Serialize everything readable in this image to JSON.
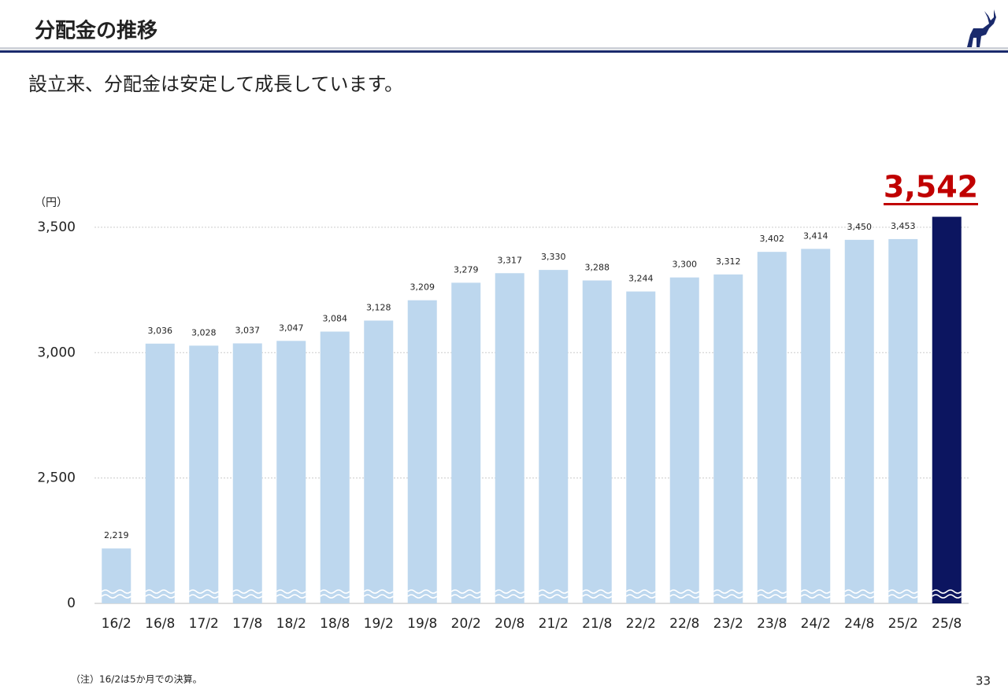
{
  "header": {
    "title": "分配金の推移",
    "page_number": "33"
  },
  "subtitle": "設立来、分配金は安定して成長しています。",
  "footnote": "（注）16/2は5か月での決算。",
  "chart_data": {
    "type": "bar",
    "y_unit": "（円）",
    "categories": [
      "16/2",
      "16/8",
      "17/2",
      "17/8",
      "18/2",
      "18/8",
      "19/2",
      "19/8",
      "20/2",
      "20/8",
      "21/2",
      "21/8",
      "22/2",
      "22/8",
      "23/2",
      "23/8",
      "24/2",
      "24/8",
      "25/2",
      "25/8"
    ],
    "values": [
      2219,
      3036,
      3028,
      3037,
      3047,
      3084,
      3128,
      3209,
      3279,
      3317,
      3330,
      3288,
      3244,
      3300,
      3312,
      3402,
      3414,
      3450,
      3453,
      3542
    ],
    "value_labels": [
      "2,219",
      "3,036",
      "3,028",
      "3,037",
      "3,047",
      "3,084",
      "3,128",
      "3,209",
      "3,279",
      "3,317",
      "3,330",
      "3,288",
      "3,244",
      "3,300",
      "3,312",
      "3,402",
      "3,414",
      "3,450",
      "3,453",
      "3,542"
    ],
    "colors": [
      "#bdd7ee",
      "#bdd7ee",
      "#bdd7ee",
      "#bdd7ee",
      "#bdd7ee",
      "#bdd7ee",
      "#bdd7ee",
      "#bdd7ee",
      "#bdd7ee",
      "#bdd7ee",
      "#bdd7ee",
      "#bdd7ee",
      "#bdd7ee",
      "#bdd7ee",
      "#bdd7ee",
      "#bdd7ee",
      "#bdd7ee",
      "#bdd7ee",
      "#bdd7ee",
      "#0c1560"
    ],
    "ylim": [
      0,
      3550
    ],
    "axis_break": [
      0,
      2000
    ],
    "yticks": [
      0,
      {
        "value": 2500,
        "label": "2,500"
      },
      {
        "value": 3000,
        "label": "3,000"
      },
      {
        "value": 3500,
        "label": "3,500"
      }
    ],
    "grid": true
  }
}
